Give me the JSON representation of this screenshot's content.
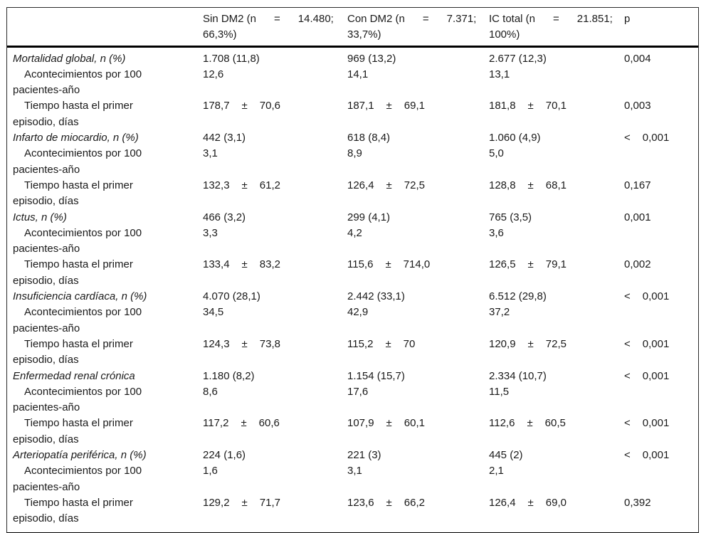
{
  "table": {
    "header": {
      "label_col": "",
      "cols": [
        {
          "line1": [
            "Sin DM2 (n",
            "=",
            "14.480;"
          ],
          "line2": [
            "66,3%)"
          ]
        },
        {
          "line1": [
            "Con DM2 (n",
            "=",
            "7.371;"
          ],
          "line2": [
            "33,7%)"
          ]
        },
        {
          "line1": [
            "IC total (n",
            "=",
            "21.851;"
          ],
          "line2": [
            "100%)"
          ]
        },
        {
          "line1": [
            "p"
          ],
          "line2": []
        }
      ]
    },
    "rows": [
      {
        "type": "disease",
        "label_lines": [
          "Mortalidad global, n (%)"
        ],
        "cells": [
          [
            "1.708 (11,8)"
          ],
          [
            "969 (13,2)"
          ],
          [
            "2.677 (12,3)"
          ],
          [
            "0,004"
          ]
        ]
      },
      {
        "type": "sub",
        "label_lines": [
          "Acontecimientos por 100",
          "pacientes-año"
        ],
        "cells": [
          [
            "12,6"
          ],
          [
            "14,1"
          ],
          [
            "13,1"
          ],
          []
        ]
      },
      {
        "type": "sub",
        "label_lines": [
          "Tiempo hasta el primer",
          "episodio, días"
        ],
        "cells": [
          [
            "178,7",
            "±",
            "70,6"
          ],
          [
            "187,1",
            "±",
            "69,1"
          ],
          [
            "181,8",
            "±",
            "70,1"
          ],
          [
            "0,003"
          ]
        ]
      },
      {
        "type": "disease",
        "label_lines": [
          "Infarto de miocardio, n (%)"
        ],
        "cells": [
          [
            "442 (3,1)"
          ],
          [
            "618 (8,4)"
          ],
          [
            "1.060 (4,9)"
          ],
          [
            "<",
            "0,001"
          ]
        ]
      },
      {
        "type": "sub",
        "label_lines": [
          "Acontecimientos por 100",
          "pacientes-año"
        ],
        "cells": [
          [
            "3,1"
          ],
          [
            "8,9"
          ],
          [
            "5,0"
          ],
          []
        ]
      },
      {
        "type": "sub",
        "label_lines": [
          "Tiempo hasta el primer",
          "episodio, días"
        ],
        "cells": [
          [
            "132,3",
            "±",
            "61,2"
          ],
          [
            "126,4",
            "±",
            "72,5"
          ],
          [
            "128,8",
            "±",
            "68,1"
          ],
          [
            "0,167"
          ]
        ]
      },
      {
        "type": "disease",
        "label_lines": [
          "Ictus, n (%)"
        ],
        "cells": [
          [
            "466 (3,2)"
          ],
          [
            "299 (4,1)"
          ],
          [
            "765 (3,5)"
          ],
          [
            "0,001"
          ]
        ]
      },
      {
        "type": "sub",
        "label_lines": [
          "Acontecimientos por 100",
          "pacientes-año"
        ],
        "cells": [
          [
            "3,3"
          ],
          [
            "4,2"
          ],
          [
            "3,6"
          ],
          []
        ]
      },
      {
        "type": "sub",
        "label_lines": [
          "Tiempo hasta el primer",
          "episodio, días"
        ],
        "cells": [
          [
            "133,4",
            "±",
            "83,2"
          ],
          [
            "115,6",
            "±",
            "714,0"
          ],
          [
            "126,5",
            "±",
            "79,1"
          ],
          [
            "0,002"
          ]
        ]
      },
      {
        "type": "disease",
        "label_lines": [
          "Insuficiencia cardíaca, n (%)"
        ],
        "cells": [
          [
            "4.070 (28,1)"
          ],
          [
            "2.442 (33,1)"
          ],
          [
            "6.512 (29,8)"
          ],
          [
            "<",
            "0,001"
          ]
        ]
      },
      {
        "type": "sub",
        "label_lines": [
          "Acontecimientos por 100",
          "pacientes-año"
        ],
        "cells": [
          [
            "34,5"
          ],
          [
            "42,9"
          ],
          [
            "37,2"
          ],
          []
        ]
      },
      {
        "type": "sub",
        "label_lines": [
          "Tiempo hasta el primer",
          "episodio, días"
        ],
        "cells": [
          [
            "124,3",
            "±",
            "73,8"
          ],
          [
            "115,2",
            "±",
            "70"
          ],
          [
            "120,9",
            "±",
            "72,5"
          ],
          [
            "<",
            "0,001"
          ]
        ]
      },
      {
        "type": "disease",
        "label_lines": [
          "Enfermedad renal crónica"
        ],
        "cells": [
          [
            "1.180 (8,2)"
          ],
          [
            "1.154 (15,7)"
          ],
          [
            "2.334 (10,7)"
          ],
          [
            "<",
            "0,001"
          ]
        ]
      },
      {
        "type": "sub",
        "label_lines": [
          "Acontecimientos por 100",
          "pacientes-año"
        ],
        "cells": [
          [
            "8,6"
          ],
          [
            "17,6"
          ],
          [
            "11,5"
          ],
          []
        ]
      },
      {
        "type": "sub",
        "label_lines": [
          "Tiempo hasta el primer",
          "episodio, días"
        ],
        "cells": [
          [
            "117,2",
            "±",
            "60,6"
          ],
          [
            "107,9",
            "±",
            "60,1"
          ],
          [
            "112,6",
            "±",
            "60,5"
          ],
          [
            "<",
            "0,001"
          ]
        ]
      },
      {
        "type": "disease",
        "label_lines": [
          "Arteriopatía periférica, n (%)"
        ],
        "cells": [
          [
            "224 (1,6)"
          ],
          [
            "221 (3)"
          ],
          [
            "445 (2)"
          ],
          [
            "<",
            "0,001"
          ]
        ]
      },
      {
        "type": "sub",
        "label_lines": [
          "Acontecimientos por 100",
          "pacientes-año"
        ],
        "cells": [
          [
            "1,6"
          ],
          [
            "3,1"
          ],
          [
            "2,1"
          ],
          []
        ]
      },
      {
        "type": "sub",
        "label_lines": [
          "Tiempo hasta el primer",
          "episodio, días"
        ],
        "cells": [
          [
            "129,2",
            "±",
            "71,7"
          ],
          [
            "123,6",
            "±",
            "66,2"
          ],
          [
            "126,4",
            "±",
            "69,0"
          ],
          [
            "0,392"
          ]
        ]
      }
    ]
  }
}
